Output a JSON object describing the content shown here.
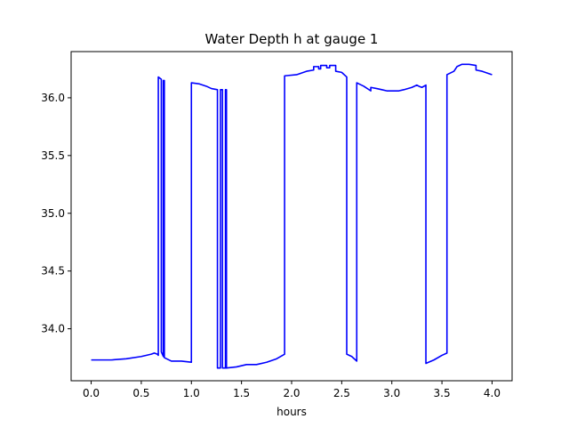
{
  "chart_data": {
    "type": "line",
    "title": "Water Depth h at gauge 1",
    "xlabel": "hours",
    "ylabel": "",
    "xlim": [
      -0.2,
      4.2
    ],
    "ylim": [
      33.55,
      36.4
    ],
    "xticks": [
      0.0,
      0.5,
      1.0,
      1.5,
      2.0,
      2.5,
      3.0,
      3.5,
      4.0
    ],
    "xtick_labels": [
      "0.0",
      "0.5",
      "1.0",
      "1.5",
      "2.0",
      "2.5",
      "3.0",
      "3.5",
      "4.0"
    ],
    "yticks": [
      34.0,
      34.5,
      35.0,
      35.5,
      36.0
    ],
    "ytick_labels": [
      "34.0",
      "34.5",
      "35.0",
      "35.5",
      "36.0"
    ],
    "grid": false,
    "series": [
      {
        "color": "#0000ff",
        "points": [
          [
            0.0,
            33.73
          ],
          [
            0.2,
            33.73
          ],
          [
            0.35,
            33.74
          ],
          [
            0.5,
            33.76
          ],
          [
            0.6,
            33.78
          ],
          [
            0.63,
            33.79
          ],
          [
            0.66,
            33.78
          ],
          [
            0.67,
            33.77
          ],
          [
            0.67,
            36.18
          ],
          [
            0.7,
            36.16
          ],
          [
            0.7,
            33.8
          ],
          [
            0.72,
            33.76
          ],
          [
            0.72,
            36.15
          ],
          [
            0.73,
            36.15
          ],
          [
            0.73,
            33.75
          ],
          [
            0.8,
            33.72
          ],
          [
            0.9,
            33.72
          ],
          [
            1.0,
            33.71
          ],
          [
            1.0,
            36.13
          ],
          [
            1.08,
            36.12
          ],
          [
            1.15,
            36.1
          ],
          [
            1.2,
            36.08
          ],
          [
            1.26,
            36.07
          ],
          [
            1.26,
            33.66
          ],
          [
            1.29,
            33.66
          ],
          [
            1.29,
            36.07
          ],
          [
            1.31,
            36.07
          ],
          [
            1.31,
            33.66
          ],
          [
            1.34,
            33.66
          ],
          [
            1.34,
            36.07
          ],
          [
            1.35,
            36.07
          ],
          [
            1.35,
            33.66
          ],
          [
            1.45,
            33.67
          ],
          [
            1.55,
            33.69
          ],
          [
            1.65,
            33.69
          ],
          [
            1.75,
            33.71
          ],
          [
            1.85,
            33.74
          ],
          [
            1.93,
            33.78
          ],
          [
            1.93,
            36.19
          ],
          [
            2.05,
            36.2
          ],
          [
            2.15,
            36.23
          ],
          [
            2.22,
            36.24
          ],
          [
            2.22,
            36.27
          ],
          [
            2.27,
            36.27
          ],
          [
            2.27,
            36.25
          ],
          [
            2.29,
            36.25
          ],
          [
            2.29,
            36.28
          ],
          [
            2.35,
            36.28
          ],
          [
            2.35,
            36.26
          ],
          [
            2.38,
            36.26
          ],
          [
            2.38,
            36.28
          ],
          [
            2.44,
            36.28
          ],
          [
            2.44,
            36.23
          ],
          [
            2.5,
            36.22
          ],
          [
            2.55,
            36.18
          ],
          [
            2.55,
            33.78
          ],
          [
            2.6,
            33.76
          ],
          [
            2.65,
            33.72
          ],
          [
            2.65,
            36.13
          ],
          [
            2.72,
            36.1
          ],
          [
            2.79,
            36.06
          ],
          [
            2.79,
            36.09
          ],
          [
            2.85,
            36.08
          ],
          [
            2.9,
            36.07
          ],
          [
            2.95,
            36.06
          ],
          [
            3.0,
            36.06
          ],
          [
            3.07,
            36.06
          ],
          [
            3.12,
            36.07
          ],
          [
            3.2,
            36.09
          ],
          [
            3.25,
            36.11
          ],
          [
            3.27,
            36.1
          ],
          [
            3.3,
            36.09
          ],
          [
            3.34,
            36.11
          ],
          [
            3.34,
            33.7
          ],
          [
            3.42,
            33.73
          ],
          [
            3.5,
            33.77
          ],
          [
            3.55,
            33.79
          ],
          [
            3.55,
            36.2
          ],
          [
            3.62,
            36.23
          ],
          [
            3.65,
            36.27
          ],
          [
            3.7,
            36.29
          ],
          [
            3.77,
            36.29
          ],
          [
            3.84,
            36.28
          ],
          [
            3.84,
            36.24
          ],
          [
            3.9,
            36.23
          ],
          [
            4.0,
            36.2
          ]
        ]
      }
    ]
  }
}
